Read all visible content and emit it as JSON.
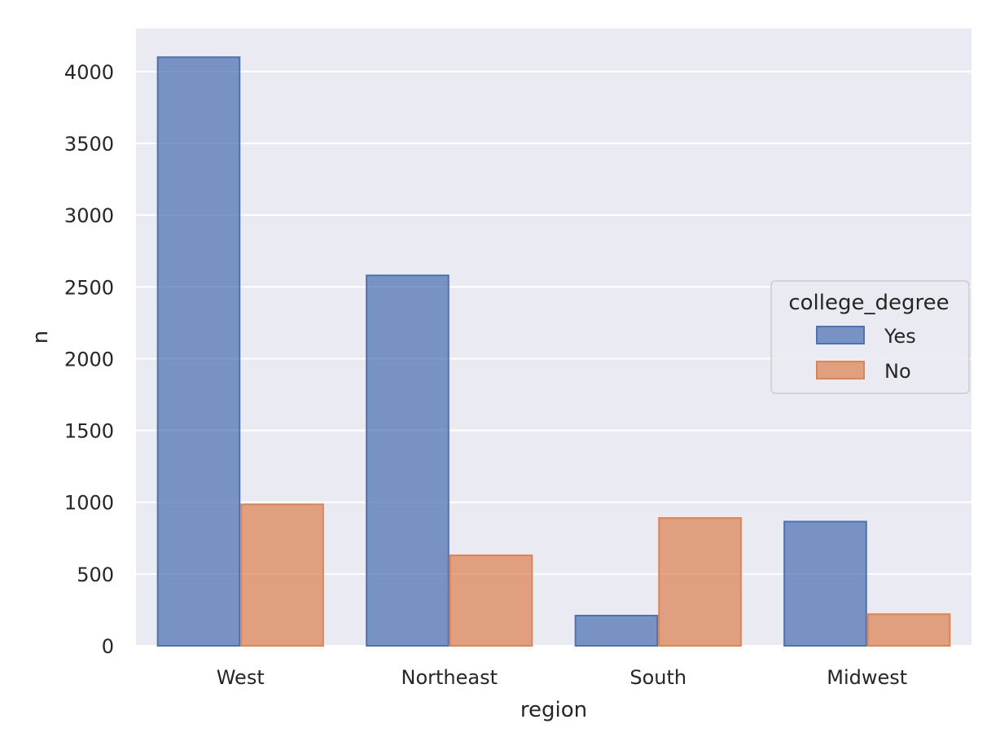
{
  "chart_data": {
    "type": "bar",
    "title": "",
    "xlabel": "region",
    "ylabel": "n",
    "categories": [
      "West",
      "Northeast",
      "South",
      "Midwest"
    ],
    "series": [
      {
        "name": "Yes",
        "values": [
          4100,
          2580,
          210,
          865
        ],
        "color": "#4c72b0"
      },
      {
        "name": "No",
        "values": [
          985,
          630,
          890,
          220
        ],
        "color": "#dd8452"
      }
    ],
    "ylim": [
      0,
      4300
    ],
    "yticks": [
      0,
      500,
      1000,
      1500,
      2000,
      2500,
      3000,
      3500,
      4000
    ],
    "grid": true,
    "legend": {
      "title": "college_degree",
      "placement": "center-right"
    },
    "background": "#eaeaf2"
  }
}
